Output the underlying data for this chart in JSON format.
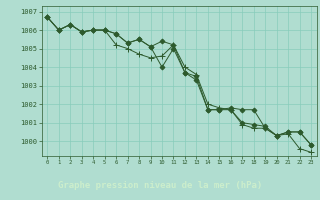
{
  "title": "Graphe pression niveau de la mer (hPa)",
  "bg_color": "#b0ddd0",
  "plot_bg_color": "#b0ddd0",
  "grid_color": "#88ccbb",
  "line_color": "#2d5a2d",
  "title_bg_color": "#3a7a4a",
  "title_text_color": "#cceecc",
  "spine_color": "#2d5a2d",
  "tick_color": "#2d5a2d",
  "xlim": [
    -0.5,
    23.5
  ],
  "ylim": [
    999.2,
    1007.3
  ],
  "yticks": [
    1000,
    1001,
    1002,
    1003,
    1004,
    1005,
    1006,
    1007
  ],
  "xticks": [
    0,
    1,
    2,
    3,
    4,
    5,
    6,
    7,
    8,
    9,
    10,
    11,
    12,
    13,
    14,
    15,
    16,
    17,
    18,
    19,
    20,
    21,
    22,
    23
  ],
  "series": [
    [
      1006.7,
      1006.0,
      1006.3,
      1005.9,
      1006.0,
      1006.0,
      1005.8,
      1005.3,
      1005.5,
      1005.1,
      1005.4,
      1005.2,
      1003.7,
      1003.3,
      1001.7,
      1001.7,
      1001.8,
      1001.7,
      1001.7,
      1000.7,
      1000.3,
      1000.5,
      1000.5,
      999.8
    ],
    [
      1006.7,
      1006.0,
      1006.3,
      1005.9,
      1006.0,
      1006.0,
      1005.2,
      1005.0,
      1004.7,
      1004.5,
      1004.6,
      1005.2,
      1004.0,
      1003.6,
      1002.0,
      1001.8,
      1001.7,
      1000.9,
      1000.7,
      1000.7,
      1000.3,
      1000.4,
      999.6,
      999.4
    ],
    [
      1006.7,
      1006.0,
      1006.3,
      1005.9,
      1006.0,
      1006.0,
      1005.8,
      1005.3,
      1005.5,
      1005.1,
      1004.0,
      1005.0,
      1003.7,
      1003.5,
      1001.7,
      1001.7,
      1001.7,
      1001.0,
      1000.9,
      1000.8,
      1000.3,
      1000.5,
      1000.5,
      999.8
    ]
  ],
  "marker_styles": [
    "D",
    "+",
    "D"
  ],
  "marker_sizes": [
    2.5,
    4,
    2.5
  ]
}
